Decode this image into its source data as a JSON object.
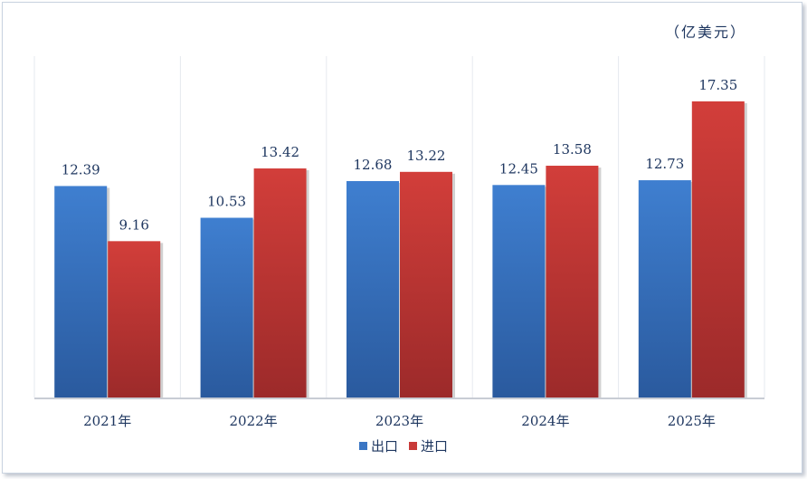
{
  "unit": "（亿美元）",
  "colors": {
    "export": "#3b76c4",
    "import": "#c93a38"
  },
  "chart_data": {
    "type": "bar",
    "categories": [
      "2021年",
      "2022年",
      "2023年",
      "2024年",
      "2025年"
    ],
    "series": [
      {
        "name": "出口",
        "values": [
          12.39,
          10.53,
          12.68,
          12.45,
          12.73
        ]
      },
      {
        "name": "进口",
        "values": [
          9.16,
          13.42,
          13.22,
          13.58,
          17.35
        ]
      }
    ],
    "value_labels": [
      [
        "12.39",
        "10.53",
        "12.68",
        "12.45",
        "12.73"
      ],
      [
        "9.16",
        "13.42",
        "13.22",
        "13.58",
        "17.35"
      ]
    ],
    "ylim": [
      0,
      20
    ],
    "grid": "vertical category separators",
    "legend": "bottom-center"
  }
}
